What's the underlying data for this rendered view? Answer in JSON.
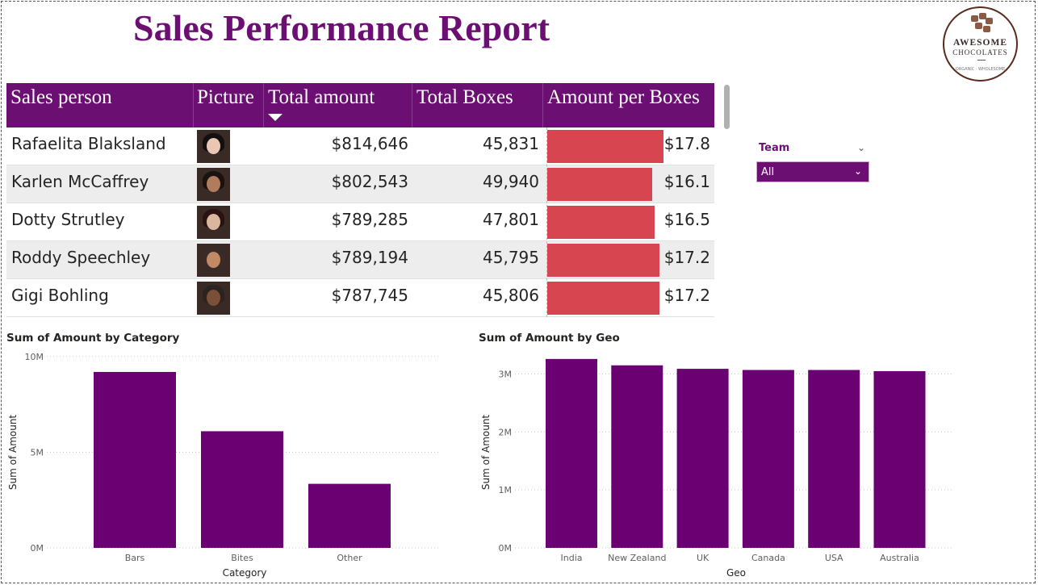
{
  "report_title": "Sales Performance Report",
  "logo": {
    "line1": "AWESOME",
    "line2": "CHOCOLATES",
    "tagline": "ORGANIC · WHOLESOME"
  },
  "table": {
    "headers": {
      "sales_person": "Sales person",
      "picture": "Picture",
      "total_amount": "Total amount",
      "total_boxes": "Total Boxes",
      "amount_per_boxes": "Amount per Boxes"
    },
    "sort": {
      "column": "total_amount",
      "direction": "descending"
    },
    "rows": [
      {
        "name": "Rafaelita Blaksland",
        "amount": "$814,646",
        "boxes": "45,831",
        "ratio_label": "$17.8",
        "ratio": 17.8,
        "alt": false,
        "skin": "#e9c7b4",
        "hair": "#101010"
      },
      {
        "name": "Karlen McCaffrey",
        "amount": "$802,543",
        "boxes": "49,940",
        "ratio_label": "$16.1",
        "ratio": 16.1,
        "alt": true,
        "skin": "#b07c5c",
        "hair": "#1a1210"
      },
      {
        "name": "Dotty Strutley",
        "amount": "$789,285",
        "boxes": "47,801",
        "ratio_label": "$16.5",
        "ratio": 16.5,
        "alt": false,
        "skin": "#d9b6a0",
        "hair": "#2a1212"
      },
      {
        "name": "Roddy Speechley",
        "amount": "$789,194",
        "boxes": "45,795",
        "ratio_label": "$17.2",
        "ratio": 17.2,
        "alt": true,
        "skin": "#c08a64",
        "hair": "#3a2a2a"
      },
      {
        "name": "Gigi Bohling",
        "amount": "$787,745",
        "boxes": "45,806",
        "ratio_label": "$17.2",
        "ratio": 17.2,
        "alt": false,
        "skin": "#7a5038",
        "hair": "#2a2420"
      }
    ],
    "ratio_max": 17.8,
    "bar_color": "#d64550",
    "header_color": "#6b0f73"
  },
  "slicer": {
    "label": "Team",
    "value": "All"
  },
  "chart_data": [
    {
      "type": "bar",
      "title": "Sum of Amount by Category",
      "xlabel": "Category",
      "ylabel": "Sum of Amount",
      "categories": [
        "Bars",
        "Bites",
        "Other"
      ],
      "values": [
        9200000,
        6100000,
        3350000
      ],
      "ylim": [
        0,
        10000000
      ],
      "ticks": [
        0,
        5000000,
        10000000
      ],
      "tick_labels": [
        "0M",
        "5M",
        "10M"
      ],
      "color": "#6b0073",
      "grid": true,
      "legend": "none"
    },
    {
      "type": "bar",
      "title": "Sum of Amount by Geo",
      "xlabel": "Geo",
      "ylabel": "Sum of Amount",
      "categories": [
        "India",
        "New Zealand",
        "UK",
        "Canada",
        "USA",
        "Australia"
      ],
      "values": [
        3260000,
        3150000,
        3090000,
        3070000,
        3070000,
        3050000
      ],
      "ylim": [
        0,
        3300000
      ],
      "ticks": [
        0,
        1000000,
        2000000,
        3000000
      ],
      "tick_labels": [
        "0M",
        "1M",
        "2M",
        "3M"
      ],
      "color": "#6b0073",
      "grid": true,
      "legend": "none"
    }
  ]
}
